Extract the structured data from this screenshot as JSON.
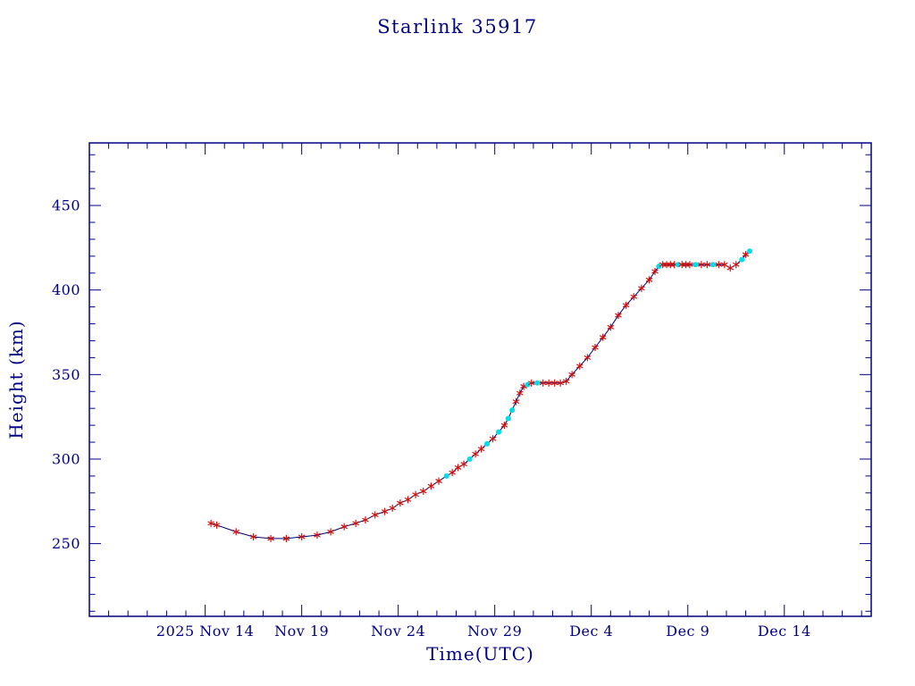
{
  "title": "Starlink 35917",
  "colors": {
    "background": "#ffffff",
    "axis": "#000082",
    "text": "#000082",
    "line": "#000070",
    "marker_star": "#cc1111",
    "marker_dot": "#00dce8"
  },
  "chart_data": {
    "type": "line",
    "title": "Starlink 35917",
    "xlabel": "Time(UTC)",
    "ylabel": "Height (km)",
    "x_unit": "days since 2025 Nov 8 00:00 UTC",
    "xlim": [
      0,
      40.5
    ],
    "ylim": [
      207,
      487
    ],
    "grid": false,
    "legend": "none",
    "x_major_ticks": [
      {
        "value": 6,
        "label": "2025 Nov 14"
      },
      {
        "value": 11,
        "label": "Nov 19"
      },
      {
        "value": 16,
        "label": "Nov 24"
      },
      {
        "value": 21,
        "label": "Nov 29"
      },
      {
        "value": 26,
        "label": "Dec 4"
      },
      {
        "value": 31,
        "label": "Dec 9"
      },
      {
        "value": 36,
        "label": "Dec 14"
      }
    ],
    "x_minor_step": 1,
    "y_major_ticks": [
      {
        "value": 250,
        "label": "250"
      },
      {
        "value": 300,
        "label": "300"
      },
      {
        "value": 350,
        "label": "350"
      },
      {
        "value": 400,
        "label": "400"
      },
      {
        "value": 450,
        "label": "450"
      }
    ],
    "y_minor_step": 10,
    "points_format": [
      "day",
      "height_km",
      "marker"
    ],
    "points": [
      [
        6.3,
        262,
        "star"
      ],
      [
        6.6,
        261,
        "star"
      ],
      [
        7.6,
        257,
        "star"
      ],
      [
        8.5,
        254,
        "star"
      ],
      [
        9.4,
        253,
        "star"
      ],
      [
        10.2,
        253,
        "star"
      ],
      [
        11.0,
        254,
        "star"
      ],
      [
        11.8,
        255,
        "star"
      ],
      [
        12.5,
        257,
        "star"
      ],
      [
        13.2,
        260,
        "star"
      ],
      [
        13.8,
        262,
        "star"
      ],
      [
        14.3,
        264,
        "star"
      ],
      [
        14.8,
        267,
        "star"
      ],
      [
        15.3,
        269,
        "star"
      ],
      [
        15.7,
        271,
        "star"
      ],
      [
        16.1,
        274,
        "star"
      ],
      [
        16.5,
        276,
        "star"
      ],
      [
        16.9,
        279,
        "star"
      ],
      [
        17.3,
        281,
        "star"
      ],
      [
        17.7,
        284,
        "star"
      ],
      [
        18.1,
        287,
        "star"
      ],
      [
        18.5,
        290,
        "dot"
      ],
      [
        18.8,
        292,
        "star"
      ],
      [
        19.1,
        295,
        "star"
      ],
      [
        19.4,
        297,
        "star"
      ],
      [
        19.7,
        300,
        "dot"
      ],
      [
        20.0,
        303,
        "star"
      ],
      [
        20.3,
        306,
        "star"
      ],
      [
        20.6,
        309,
        "dot"
      ],
      [
        20.9,
        312,
        "star"
      ],
      [
        21.2,
        316,
        "dot"
      ],
      [
        21.5,
        320,
        "star"
      ],
      [
        21.7,
        324,
        "dot"
      ],
      [
        21.9,
        329,
        "dot"
      ],
      [
        22.1,
        334,
        "star"
      ],
      [
        22.3,
        339,
        "star"
      ],
      [
        22.5,
        343,
        "star"
      ],
      [
        22.7,
        344,
        "dot"
      ],
      [
        22.9,
        345,
        "star"
      ],
      [
        23.2,
        345,
        "dot"
      ],
      [
        23.5,
        345,
        "star"
      ],
      [
        23.8,
        345,
        "star"
      ],
      [
        24.1,
        345,
        "star"
      ],
      [
        24.4,
        345,
        "star"
      ],
      [
        24.7,
        346,
        "star"
      ],
      [
        25.0,
        350,
        "star"
      ],
      [
        25.4,
        355,
        "star"
      ],
      [
        25.8,
        360,
        "star"
      ],
      [
        26.2,
        366,
        "star"
      ],
      [
        26.6,
        372,
        "star"
      ],
      [
        27.0,
        378,
        "star"
      ],
      [
        27.4,
        385,
        "star"
      ],
      [
        27.8,
        391,
        "star"
      ],
      [
        28.2,
        396,
        "star"
      ],
      [
        28.6,
        401,
        "star"
      ],
      [
        29.0,
        406,
        "star"
      ],
      [
        29.3,
        411,
        "star"
      ],
      [
        29.5,
        414,
        "dot"
      ],
      [
        29.7,
        415,
        "star"
      ],
      [
        29.9,
        415,
        "star"
      ],
      [
        30.1,
        415,
        "star"
      ],
      [
        30.3,
        415,
        "star"
      ],
      [
        30.5,
        415,
        "dot"
      ],
      [
        30.7,
        415,
        "star"
      ],
      [
        30.9,
        415,
        "star"
      ],
      [
        31.1,
        415,
        "star"
      ],
      [
        31.4,
        415,
        "dot"
      ],
      [
        31.7,
        415,
        "star"
      ],
      [
        32.0,
        415,
        "star"
      ],
      [
        32.3,
        415,
        "dot"
      ],
      [
        32.6,
        415,
        "star"
      ],
      [
        32.9,
        415,
        "star"
      ],
      [
        33.2,
        413,
        "star"
      ],
      [
        33.5,
        415,
        "star"
      ],
      [
        33.8,
        418,
        "dot"
      ],
      [
        34.0,
        421,
        "star"
      ],
      [
        34.2,
        423,
        "dot"
      ]
    ]
  }
}
